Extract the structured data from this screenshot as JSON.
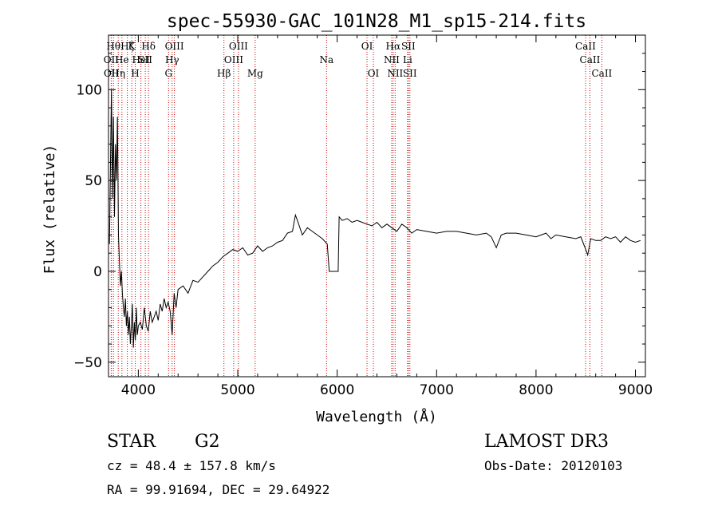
{
  "chart_data": {
    "type": "line",
    "title": "spec-55930-GAC_101N28_M1_sp15-214.fits",
    "xlabel": "Wavelength (Å)",
    "ylabel": "Flux (relative)",
    "xlim": [
      3700,
      9100
    ],
    "ylim": [
      -58,
      130
    ],
    "x_ticks": [
      4000,
      5000,
      6000,
      7000,
      8000,
      9000
    ],
    "y_ticks": [
      -50,
      0,
      50,
      100
    ],
    "x_tick_labels": [
      "4000",
      "5000",
      "6000",
      "7000",
      "8000",
      "9000"
    ],
    "y_tick_labels": [
      "−50",
      "0",
      "50",
      "100"
    ],
    "series": [
      {
        "color": "#000000",
        "points": [
          [
            3710,
            15
          ],
          [
            3720,
            60
          ],
          [
            3730,
            100
          ],
          [
            3740,
            40
          ],
          [
            3750,
            85
          ],
          [
            3760,
            30
          ],
          [
            3770,
            70
          ],
          [
            3780,
            50
          ],
          [
            3790,
            85
          ],
          [
            3800,
            20
          ],
          [
            3810,
            5
          ],
          [
            3820,
            -8
          ],
          [
            3830,
            0
          ],
          [
            3840,
            -12
          ],
          [
            3850,
            -20
          ],
          [
            3860,
            -25
          ],
          [
            3870,
            -15
          ],
          [
            3880,
            -30
          ],
          [
            3890,
            -22
          ],
          [
            3900,
            -35
          ],
          [
            3910,
            -25
          ],
          [
            3920,
            -40
          ],
          [
            3930,
            -30
          ],
          [
            3940,
            -18
          ],
          [
            3950,
            -42
          ],
          [
            3960,
            -28
          ],
          [
            3970,
            -38
          ],
          [
            3980,
            -20
          ],
          [
            3990,
            -35
          ],
          [
            4000,
            -30
          ],
          [
            4020,
            -28
          ],
          [
            4040,
            -32
          ],
          [
            4060,
            -20
          ],
          [
            4080,
            -30
          ],
          [
            4100,
            -33
          ],
          [
            4120,
            -22
          ],
          [
            4140,
            -28
          ],
          [
            4160,
            -25
          ],
          [
            4180,
            -22
          ],
          [
            4200,
            -27
          ],
          [
            4220,
            -18
          ],
          [
            4240,
            -22
          ],
          [
            4260,
            -15
          ],
          [
            4280,
            -20
          ],
          [
            4300,
            -17
          ],
          [
            4320,
            -22
          ],
          [
            4340,
            -35
          ],
          [
            4360,
            -12
          ],
          [
            4380,
            -20
          ],
          [
            4400,
            -10
          ],
          [
            4450,
            -8
          ],
          [
            4500,
            -12
          ],
          [
            4550,
            -5
          ],
          [
            4600,
            -6
          ],
          [
            4650,
            -3
          ],
          [
            4700,
            0
          ],
          [
            4750,
            3
          ],
          [
            4800,
            5
          ],
          [
            4850,
            8
          ],
          [
            4900,
            10
          ],
          [
            4950,
            12
          ],
          [
            5000,
            11
          ],
          [
            5050,
            13
          ],
          [
            5100,
            9
          ],
          [
            5150,
            10
          ],
          [
            5200,
            14
          ],
          [
            5250,
            11
          ],
          [
            5300,
            13
          ],
          [
            5350,
            14
          ],
          [
            5400,
            16
          ],
          [
            5450,
            17
          ],
          [
            5500,
            21
          ],
          [
            5550,
            22
          ],
          [
            5580,
            31
          ],
          [
            5600,
            28
          ],
          [
            5650,
            20
          ],
          [
            5700,
            24
          ],
          [
            5750,
            22
          ],
          [
            5800,
            20
          ],
          [
            5850,
            18
          ],
          [
            5900,
            15
          ],
          [
            5920,
            0
          ],
          [
            5980,
            0
          ],
          [
            6010,
            0
          ],
          [
            6020,
            30
          ],
          [
            6050,
            28
          ],
          [
            6100,
            29
          ],
          [
            6150,
            27
          ],
          [
            6200,
            28
          ],
          [
            6250,
            27
          ],
          [
            6300,
            26
          ],
          [
            6350,
            25
          ],
          [
            6400,
            27
          ],
          [
            6450,
            24
          ],
          [
            6500,
            26
          ],
          [
            6550,
            24
          ],
          [
            6600,
            22
          ],
          [
            6650,
            26
          ],
          [
            6700,
            24
          ],
          [
            6750,
            21
          ],
          [
            6800,
            23
          ],
          [
            6900,
            22
          ],
          [
            7000,
            21
          ],
          [
            7100,
            22
          ],
          [
            7200,
            22
          ],
          [
            7300,
            21
          ],
          [
            7400,
            20
          ],
          [
            7500,
            21
          ],
          [
            7550,
            19
          ],
          [
            7600,
            13
          ],
          [
            7650,
            20
          ],
          [
            7700,
            21
          ],
          [
            7800,
            21
          ],
          [
            7900,
            20
          ],
          [
            8000,
            19
          ],
          [
            8100,
            21
          ],
          [
            8150,
            18
          ],
          [
            8200,
            20
          ],
          [
            8300,
            19
          ],
          [
            8400,
            18
          ],
          [
            8450,
            19
          ],
          [
            8500,
            12
          ],
          [
            8520,
            9
          ],
          [
            8550,
            18
          ],
          [
            8600,
            17
          ],
          [
            8650,
            17
          ],
          [
            8700,
            19
          ],
          [
            8750,
            18
          ],
          [
            8800,
            19
          ],
          [
            8850,
            16
          ],
          [
            8900,
            19
          ],
          [
            8950,
            17
          ],
          [
            9000,
            16
          ],
          [
            9050,
            17
          ]
        ]
      }
    ],
    "lines": [
      {
        "w": 3727,
        "label": "OII",
        "row": 2
      },
      {
        "w": 3729,
        "label": "OII",
        "row": 3
      },
      {
        "w": 3750,
        "label": "Hθ",
        "row": 1
      },
      {
        "w": 3798,
        "label": "Hη",
        "row": 3
      },
      {
        "w": 3835,
        "label": "He",
        "row": 2
      },
      {
        "w": 3889,
        "label": "Hζ",
        "row": 1
      },
      {
        "w": 3934,
        "label": "K",
        "row": 1
      },
      {
        "w": 3969,
        "label": "H",
        "row": 3
      },
      {
        "w": 4026,
        "label": "HeI",
        "row": 2
      },
      {
        "w": 4070,
        "label": "SII",
        "row": 2
      },
      {
        "w": 4102,
        "label": "Hδ",
        "row": 1
      },
      {
        "w": 4304,
        "label": "G",
        "row": 3
      },
      {
        "w": 4340,
        "label": "Hγ",
        "row": 2
      },
      {
        "w": 4363,
        "label": "OIII",
        "row": 1
      },
      {
        "w": 4861,
        "label": "Hβ",
        "row": 3
      },
      {
        "w": 4959,
        "label": "OIII",
        "row": 2
      },
      {
        "w": 5007,
        "label": "OIII",
        "row": 1
      },
      {
        "w": 5175,
        "label": "Mg",
        "row": 3
      },
      {
        "w": 5893,
        "label": "Na",
        "row": 2
      },
      {
        "w": 6300,
        "label": "OI",
        "row": 1
      },
      {
        "w": 6364,
        "label": "OI",
        "row": 3
      },
      {
        "w": 6548,
        "label": "NII",
        "row": 2
      },
      {
        "w": 6563,
        "label": "Hα",
        "row": 1
      },
      {
        "w": 6583,
        "label": "NII",
        "row": 3
      },
      {
        "w": 6708,
        "label": "Li",
        "row": 2
      },
      {
        "w": 6716,
        "label": "SII",
        "row": 1
      },
      {
        "w": 6731,
        "label": "SII",
        "row": 3
      },
      {
        "w": 8498,
        "label": "CaII",
        "row": 1
      },
      {
        "w": 8542,
        "label": "CaII",
        "row": 2
      },
      {
        "w": 8662,
        "label": "CaII",
        "row": 3
      }
    ],
    "colors": {
      "spectrum": "#000000",
      "line_markers": "#cc0000"
    }
  },
  "info": {
    "class": "STAR",
    "subclass": "G2",
    "survey": "LAMOST DR3",
    "cz": "cz = 48.4 ± 157.8 km/s",
    "obs_date": "Obs-Date: 20120103",
    "coords": "RA =  99.91694, DEC =  29.64922"
  }
}
